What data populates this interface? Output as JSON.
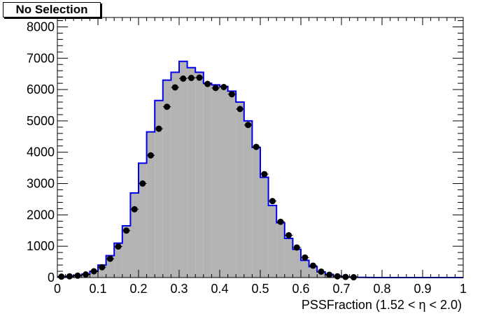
{
  "chart_data": {
    "type": "histogram",
    "title": "No Selection",
    "xlabel": "PSSFraction (1.52 <  η < 2.0)",
    "ylabel": "",
    "xlim": [
      0,
      1
    ],
    "ylim": [
      0,
      8300
    ],
    "grid": false,
    "x_ticks": [
      0,
      0.1,
      0.2,
      0.3,
      0.4,
      0.5,
      0.6,
      0.7,
      0.8,
      0.9,
      1
    ],
    "x_tick_labels": [
      "0",
      "0.1",
      "0.2",
      "0.3",
      "0.4",
      "0.5",
      "0.6",
      "0.7",
      "0.8",
      "0.9",
      "1"
    ],
    "y_ticks": [
      0,
      1000,
      2000,
      3000,
      4000,
      5000,
      6000,
      7000,
      8000
    ],
    "y_tick_labels": [
      "0",
      "1000",
      "2000",
      "3000",
      "4000",
      "5000",
      "6000",
      "7000",
      "8000"
    ],
    "bin_width": 0.02,
    "series": [
      {
        "kind": "filled-histogram",
        "color": "#0000ee",
        "fill": "#b3b3b3",
        "x": [
          0.01,
          0.03,
          0.05,
          0.07,
          0.09,
          0.11,
          0.13,
          0.15,
          0.17,
          0.19,
          0.21,
          0.23,
          0.25,
          0.27,
          0.29,
          0.31,
          0.33,
          0.35,
          0.37,
          0.39,
          0.41,
          0.43,
          0.45,
          0.47,
          0.49,
          0.51,
          0.53,
          0.55,
          0.57,
          0.59,
          0.61,
          0.63,
          0.65,
          0.67,
          0.69,
          0.71,
          0.73,
          0.75,
          0.77,
          0.79,
          0.81,
          0.83,
          0.85,
          0.87,
          0.89,
          0.91,
          0.93,
          0.95,
          0.97,
          0.99
        ],
        "values": [
          20,
          40,
          70,
          110,
          200,
          400,
          700,
          1100,
          1650,
          2700,
          3650,
          4650,
          5650,
          6300,
          6550,
          6900,
          6700,
          6550,
          6200,
          6150,
          6100,
          5950,
          5600,
          5000,
          4150,
          3200,
          2300,
          1750,
          1250,
          900,
          550,
          350,
          180,
          100,
          50,
          20,
          10,
          5,
          2,
          1,
          0,
          0,
          0,
          0,
          0,
          0,
          0,
          0,
          0,
          0
        ]
      },
      {
        "kind": "points-with-errors",
        "color": "#000000",
        "x": [
          0.01,
          0.03,
          0.05,
          0.07,
          0.09,
          0.11,
          0.13,
          0.15,
          0.17,
          0.19,
          0.21,
          0.23,
          0.25,
          0.27,
          0.29,
          0.31,
          0.33,
          0.35,
          0.37,
          0.39,
          0.41,
          0.43,
          0.45,
          0.47,
          0.49,
          0.51,
          0.53,
          0.55,
          0.57,
          0.59,
          0.61,
          0.63,
          0.65,
          0.67,
          0.69,
          0.71,
          0.73
        ],
        "values": [
          30,
          40,
          60,
          100,
          200,
          330,
          600,
          990,
          1500,
          2180,
          3000,
          3900,
          4750,
          5450,
          6070,
          6350,
          6370,
          6380,
          6180,
          6050,
          6080,
          5850,
          5380,
          4870,
          4170,
          3300,
          2440,
          1780,
          1350,
          960,
          640,
          380,
          190,
          90,
          40,
          20,
          10
        ]
      }
    ]
  }
}
